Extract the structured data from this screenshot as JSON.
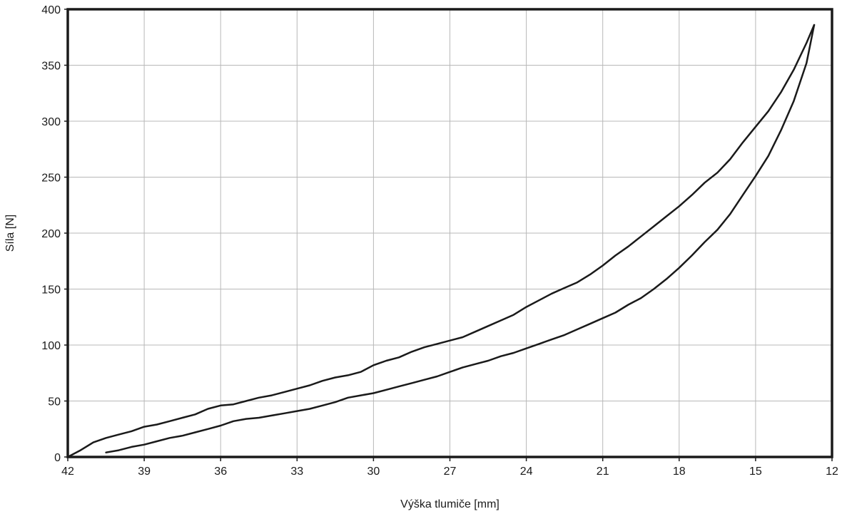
{
  "chart_data": {
    "type": "line",
    "title": "",
    "xlabel": "Výška tlumiče [mm]",
    "ylabel": "Síla [N]",
    "xlim": [
      42,
      12
    ],
    "ylim": [
      0,
      400
    ],
    "x_reversed": true,
    "grid": true,
    "x_ticks": [
      42,
      39,
      36,
      33,
      30,
      27,
      24,
      21,
      18,
      15,
      12
    ],
    "y_ticks": [
      0,
      50,
      100,
      150,
      200,
      250,
      300,
      350,
      400
    ],
    "line_color": "#1a1a1a",
    "grid_color": "#b8b8b8",
    "series": [
      {
        "x": [
          42,
          41.5,
          41,
          40.5,
          40,
          39.5,
          39,
          38.5,
          38,
          37.5,
          37,
          36.5,
          36,
          35.5,
          35,
          34.5,
          34,
          33.5,
          33,
          32.5,
          32,
          31.5,
          31,
          30.5,
          30,
          29.5,
          29,
          28.5,
          28,
          27.5,
          27,
          26.5,
          26,
          25.5,
          25,
          24.5,
          24,
          23.5,
          23,
          22.5,
          22,
          21.5,
          21,
          20.5,
          20,
          19.5,
          19,
          18.5,
          18,
          17.5,
          17,
          16.5,
          16,
          15.5,
          15,
          14.5,
          14,
          13.5,
          13,
          12.7
        ],
        "y": [
          0,
          6,
          13,
          17,
          20,
          23,
          27,
          29,
          32,
          35,
          38,
          43,
          46,
          47,
          50,
          53,
          55,
          58,
          61,
          64,
          68,
          71,
          73,
          76,
          82,
          86,
          89,
          94,
          98,
          101,
          104,
          107,
          112,
          117,
          122,
          127,
          134,
          140,
          146,
          151,
          156,
          163,
          171,
          180,
          188,
          197,
          206,
          215,
          224,
          234,
          245,
          254,
          266,
          281,
          295,
          309,
          326,
          346,
          370,
          386
        ]
      },
      {
        "x": [
          40.5,
          40,
          39.5,
          39,
          38.5,
          38,
          37.5,
          37,
          36.5,
          36,
          35.5,
          35,
          34.5,
          34,
          33.5,
          33,
          32.5,
          32,
          31.5,
          31,
          30.5,
          30,
          29.5,
          29,
          28.5,
          28,
          27.5,
          27,
          26.5,
          26,
          25.5,
          25,
          24.5,
          24,
          23.5,
          23,
          22.5,
          22,
          21.5,
          21,
          20.5,
          20,
          19.5,
          19,
          18.5,
          18,
          17.5,
          17,
          16.5,
          16,
          15.5,
          15,
          14.5,
          14,
          13.5,
          13,
          12.7
        ],
        "y": [
          4,
          6,
          9,
          11,
          14,
          17,
          19,
          22,
          25,
          28,
          32,
          34,
          35,
          37,
          39,
          41,
          43,
          46,
          49,
          53,
          55,
          57,
          60,
          63,
          66,
          69,
          72,
          76,
          80,
          83,
          86,
          90,
          93,
          97,
          101,
          105,
          109,
          114,
          119,
          124,
          129,
          136,
          142,
          150,
          159,
          169,
          180,
          192,
          203,
          217,
          234,
          251,
          269,
          292,
          318,
          352,
          386
        ]
      }
    ]
  }
}
